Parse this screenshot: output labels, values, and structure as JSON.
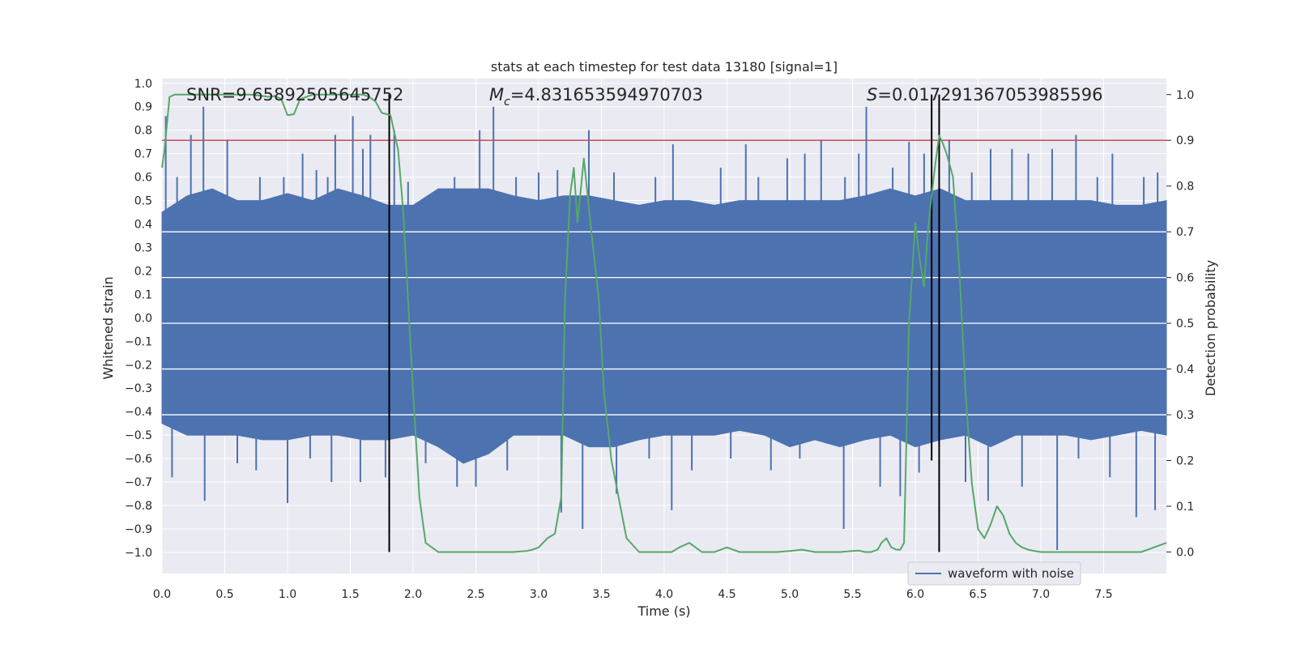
{
  "chart_data": {
    "type": "line",
    "title": "stats at each timestep for test data 13180 [signal=1]",
    "xlabel": "Time (s)",
    "ylabel_left": "Whitened strain",
    "ylabel_right": "Detection probability",
    "xlim": [
      0,
      8
    ],
    "ylim_left": [
      -1.09,
      1.02
    ],
    "ylim_right": [
      -0.047,
      1.035
    ],
    "x_ticks": [
      0,
      0.5,
      1,
      1.5,
      2,
      2.5,
      3,
      3.5,
      4,
      4.5,
      5,
      5.5,
      6,
      6.5,
      7,
      7.5
    ],
    "x_tick_labels": [
      "0.0",
      "0.5",
      "1.0",
      "1.5",
      "2.0",
      "2.5",
      "3.0",
      "3.5",
      "4.0",
      "4.5",
      "5.0",
      "5.5",
      "6.0",
      "6.5",
      "7.0",
      "7.5"
    ],
    "y_left_ticks": [
      1.0,
      0.9,
      0.8,
      0.7,
      0.6,
      0.5,
      0.4,
      0.3,
      0.2,
      0.1,
      0.0,
      -0.1,
      -0.2,
      -0.3,
      -0.4,
      -0.5,
      -0.6,
      -0.7,
      -0.8,
      -0.9,
      -1.0
    ],
    "y_left_tick_labels": [
      "1.0",
      "0.9",
      "0.8",
      "0.7",
      "0.6",
      "0.5",
      "0.4",
      "0.3",
      "0.2",
      "0.1",
      "0.0",
      "−0.1",
      "−0.2",
      "−0.3",
      "−0.4",
      "−0.5",
      "−0.6",
      "−0.7",
      "−0.8",
      "−0.9",
      "−1.0"
    ],
    "y_right_ticks": [
      1.0,
      0.9,
      0.8,
      0.7,
      0.6,
      0.5,
      0.4,
      0.3,
      0.2,
      0.1,
      0.0
    ],
    "y_right_tick_labels": [
      "1.0",
      "0.9",
      "0.8",
      "0.7",
      "0.6",
      "0.5",
      "0.4",
      "0.3",
      "0.2",
      "0.1",
      "0.0"
    ],
    "annotations": {
      "snr": "SNR=9.65892505645752",
      "mc_symbol": "M",
      "mc_subscript": "c",
      "mc_value": "=4.831653594970703",
      "s_symbol": "S",
      "s_value": "=0.017291367053985596"
    },
    "threshold": {
      "value": 0.9,
      "axis": "right",
      "color": "#c44e52"
    },
    "vertical_lines": [
      {
        "x": 1.81,
        "from": 0.0,
        "to": 1.0
      },
      {
        "x": 6.13,
        "from": 0.2,
        "to": 1.0
      },
      {
        "x": 6.19,
        "from": 0.0,
        "to": 1.0
      }
    ],
    "series": [
      {
        "name": "waveform with noise",
        "axis": "left",
        "color": "#4c72b0",
        "envelope": {
          "x": [
            0.0,
            0.2,
            0.4,
            0.6,
            0.8,
            1.0,
            1.2,
            1.4,
            1.6,
            1.8,
            2.0,
            2.2,
            2.4,
            2.6,
            2.8,
            3.0,
            3.2,
            3.4,
            3.6,
            3.8,
            4.0,
            4.2,
            4.4,
            4.6,
            4.8,
            5.0,
            5.2,
            5.4,
            5.6,
            5.8,
            6.0,
            6.2,
            6.4,
            6.6,
            6.8,
            7.0,
            7.2,
            7.4,
            7.6,
            7.8,
            8.0
          ],
          "upper": [
            0.45,
            0.52,
            0.55,
            0.5,
            0.5,
            0.53,
            0.5,
            0.55,
            0.52,
            0.48,
            0.48,
            0.55,
            0.55,
            0.55,
            0.52,
            0.5,
            0.52,
            0.52,
            0.5,
            0.48,
            0.5,
            0.5,
            0.48,
            0.5,
            0.5,
            0.5,
            0.5,
            0.5,
            0.52,
            0.55,
            0.52,
            0.55,
            0.5,
            0.5,
            0.5,
            0.5,
            0.5,
            0.5,
            0.48,
            0.48,
            0.5
          ],
          "lower": [
            -0.45,
            -0.5,
            -0.5,
            -0.5,
            -0.52,
            -0.52,
            -0.5,
            -0.5,
            -0.52,
            -0.52,
            -0.5,
            -0.55,
            -0.62,
            -0.58,
            -0.5,
            -0.5,
            -0.5,
            -0.55,
            -0.55,
            -0.52,
            -0.5,
            -0.5,
            -0.5,
            -0.48,
            -0.5,
            -0.55,
            -0.52,
            -0.55,
            -0.52,
            -0.5,
            -0.55,
            -0.52,
            -0.5,
            -0.55,
            -0.5,
            -0.5,
            -0.5,
            -0.52,
            -0.5,
            -0.48,
            -0.5
          ]
        },
        "spikes": [
          [
            0.03,
            0.86
          ],
          [
            0.12,
            0.6
          ],
          [
            0.23,
            0.78
          ],
          [
            0.33,
            0.9
          ],
          [
            0.52,
            0.76
          ],
          [
            0.78,
            0.6
          ],
          [
            0.97,
            0.6
          ],
          [
            1.12,
            0.7
          ],
          [
            1.23,
            0.63
          ],
          [
            1.32,
            0.6
          ],
          [
            1.38,
            0.78
          ],
          [
            1.52,
            0.86
          ],
          [
            1.6,
            0.72
          ],
          [
            1.66,
            0.78
          ],
          [
            1.85,
            0.8
          ],
          [
            1.96,
            0.58
          ],
          [
            2.33,
            0.6
          ],
          [
            2.53,
            0.8
          ],
          [
            2.64,
            0.9
          ],
          [
            2.82,
            0.6
          ],
          [
            3.0,
            0.62
          ],
          [
            3.15,
            0.63
          ],
          [
            3.4,
            0.8
          ],
          [
            3.6,
            0.62
          ],
          [
            3.93,
            0.6
          ],
          [
            4.07,
            0.74
          ],
          [
            4.45,
            0.64
          ],
          [
            4.65,
            0.74
          ],
          [
            4.75,
            0.6
          ],
          [
            4.98,
            0.68
          ],
          [
            5.12,
            0.7
          ],
          [
            5.25,
            0.76
          ],
          [
            5.44,
            0.6
          ],
          [
            5.55,
            0.7
          ],
          [
            5.61,
            0.9
          ],
          [
            5.82,
            0.64
          ],
          [
            5.95,
            0.75
          ],
          [
            6.07,
            0.7
          ],
          [
            6.27,
            0.76
          ],
          [
            6.45,
            0.62
          ],
          [
            6.6,
            0.72
          ],
          [
            6.77,
            0.72
          ],
          [
            6.9,
            0.7
          ],
          [
            7.09,
            0.72
          ],
          [
            7.28,
            0.78
          ],
          [
            7.45,
            0.6
          ],
          [
            7.57,
            0.7
          ],
          [
            7.82,
            0.6
          ],
          [
            7.93,
            0.62
          ],
          [
            0.08,
            -0.68
          ],
          [
            0.34,
            -0.78
          ],
          [
            0.6,
            -0.62
          ],
          [
            0.75,
            -0.65
          ],
          [
            1.0,
            -0.79
          ],
          [
            1.18,
            -0.6
          ],
          [
            1.35,
            -0.7
          ],
          [
            1.58,
            -0.7
          ],
          [
            1.78,
            -0.68
          ],
          [
            2.1,
            -0.62
          ],
          [
            2.35,
            -0.72
          ],
          [
            2.5,
            -0.72
          ],
          [
            2.75,
            -0.65
          ],
          [
            3.18,
            -0.83
          ],
          [
            3.35,
            -0.9
          ],
          [
            3.62,
            -0.75
          ],
          [
            3.88,
            -0.6
          ],
          [
            4.06,
            -0.82
          ],
          [
            4.22,
            -0.65
          ],
          [
            4.53,
            -0.6
          ],
          [
            4.85,
            -0.65
          ],
          [
            5.08,
            -0.6
          ],
          [
            5.43,
            -0.9
          ],
          [
            5.72,
            -0.72
          ],
          [
            5.88,
            -0.76
          ],
          [
            6.03,
            -0.66
          ],
          [
            6.4,
            -0.7
          ],
          [
            6.58,
            -0.78
          ],
          [
            6.85,
            -0.72
          ],
          [
            7.13,
            -0.99
          ],
          [
            7.3,
            -0.6
          ],
          [
            7.55,
            -0.68
          ],
          [
            7.76,
            -0.85
          ],
          [
            7.91,
            -0.82
          ]
        ]
      },
      {
        "name": "detection probability",
        "axis": "right",
        "color": "#55a868",
        "x": [
          0.0,
          0.02,
          0.06,
          0.1,
          0.15,
          0.2,
          0.3,
          0.4,
          0.5,
          0.6,
          0.7,
          0.8,
          0.85,
          0.9,
          0.95,
          1.0,
          1.05,
          1.1,
          1.2,
          1.3,
          1.4,
          1.5,
          1.55,
          1.6,
          1.65,
          1.7,
          1.75,
          1.82,
          1.88,
          1.92,
          1.96,
          2.0,
          2.05,
          2.1,
          2.2,
          2.3,
          2.4,
          2.5,
          2.6,
          2.7,
          2.8,
          2.9,
          2.95,
          3.0,
          3.07,
          3.13,
          3.18,
          3.21,
          3.25,
          3.28,
          3.31,
          3.36,
          3.42,
          3.48,
          3.52,
          3.58,
          3.7,
          3.8,
          3.9,
          4.0,
          4.06,
          4.12,
          4.2,
          4.3,
          4.4,
          4.5,
          4.6,
          4.7,
          4.8,
          4.9,
          5.0,
          5.1,
          5.2,
          5.3,
          5.4,
          5.5,
          5.55,
          5.6,
          5.65,
          5.7,
          5.73,
          5.77,
          5.81,
          5.85,
          5.88,
          5.91,
          5.95,
          6.0,
          6.03,
          6.07,
          6.1,
          6.13,
          6.16,
          6.19,
          6.21,
          6.25,
          6.3,
          6.35,
          6.4,
          6.45,
          6.5,
          6.55,
          6.6,
          6.65,
          6.7,
          6.75,
          6.8,
          6.85,
          6.9,
          6.95,
          7.0,
          7.1,
          7.2,
          7.3,
          7.4,
          7.5,
          7.6,
          7.7,
          7.8,
          7.9,
          8.0
        ],
        "y": [
          0.84,
          0.88,
          0.995,
          1.0,
          1.0,
          1.0,
          1.0,
          1.0,
          1.0,
          1.0,
          1.0,
          0.997,
          0.995,
          0.997,
          0.99,
          0.955,
          0.957,
          0.99,
          1.0,
          1.0,
          1.0,
          1.0,
          1.0,
          1.0,
          0.995,
          0.985,
          0.96,
          0.955,
          0.88,
          0.75,
          0.55,
          0.35,
          0.12,
          0.02,
          0.0,
          0.0,
          0.0,
          0.0,
          0.0,
          0.0,
          0.0,
          0.002,
          0.005,
          0.01,
          0.03,
          0.04,
          0.12,
          0.55,
          0.78,
          0.84,
          0.72,
          0.86,
          0.7,
          0.55,
          0.35,
          0.2,
          0.03,
          0.0,
          0.0,
          0.0,
          0.0,
          0.01,
          0.02,
          0.0,
          0.0,
          0.01,
          0.0,
          0.0,
          0.0,
          0.0,
          0.002,
          0.005,
          0.0,
          0.0,
          0.0,
          0.002,
          0.003,
          0.0,
          0.0,
          0.005,
          0.02,
          0.03,
          0.01,
          0.005,
          0.005,
          0.02,
          0.5,
          0.72,
          0.65,
          0.58,
          0.7,
          0.78,
          0.85,
          0.91,
          0.9,
          0.87,
          0.82,
          0.62,
          0.35,
          0.15,
          0.05,
          0.03,
          0.06,
          0.1,
          0.08,
          0.04,
          0.02,
          0.01,
          0.005,
          0.002,
          0.0,
          0.0,
          0.0,
          0.0,
          0.0,
          0.0,
          0.0,
          0.0,
          0.0,
          0.01,
          0.02
        ]
      }
    ],
    "legend": {
      "position": "bottom-right",
      "entries": [
        "waveform with noise"
      ]
    }
  }
}
